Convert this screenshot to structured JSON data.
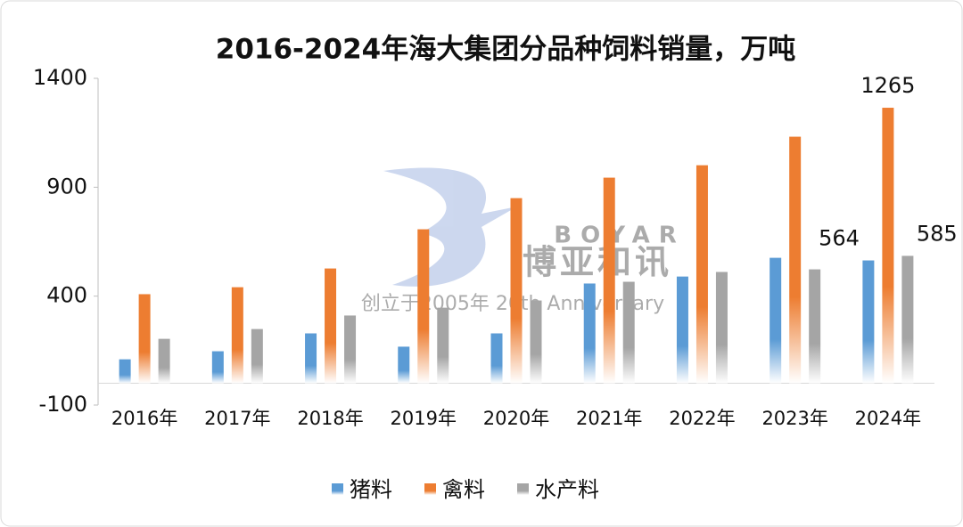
{
  "chart_data": {
    "type": "bar",
    "title": "2016-2024年海大集团分品种饲料销量，万吨",
    "categories": [
      "2016年",
      "2017年",
      "2018年",
      "2019年",
      "2020年",
      "2021年",
      "2022年",
      "2023年",
      "2024年"
    ],
    "series": [
      {
        "name": "猪料",
        "color": "#5b9bd5",
        "values": [
          110,
          147,
          229,
          168,
          229,
          458,
          490,
          576,
          564
        ]
      },
      {
        "name": "禽料",
        "color": "#ed7d31",
        "values": [
          409,
          441,
          527,
          707,
          850,
          944,
          1001,
          1132,
          1265
        ]
      },
      {
        "name": "水产料",
        "color": "#a5a5a5",
        "values": [
          204,
          249,
          311,
          347,
          380,
          466,
          511,
          523,
          585
        ]
      }
    ],
    "data_labels": "last",
    "ylim": [
      -100,
      1400
    ],
    "yticks": [
      -100,
      400,
      900,
      1400
    ],
    "legend": "bottom",
    "watermark": [
      "BOYAR",
      "博亚和讯",
      "创立于2005年 20th Anniversary"
    ]
  }
}
